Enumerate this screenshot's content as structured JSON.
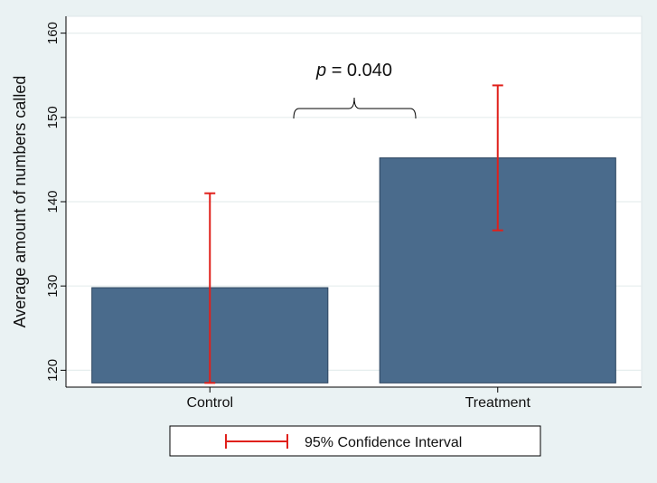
{
  "chart_data": {
    "type": "bar",
    "categories": [
      "Control",
      "Treatment"
    ],
    "series": [
      {
        "values": [
          129.8,
          145.2
        ],
        "ci_lower": [
          118.5,
          136.6
        ],
        "ci_upper": [
          141.0,
          153.8
        ],
        "color": "#4a6b8c"
      }
    ],
    "ylabel": "Average amount of numbers called",
    "xlabel": "",
    "title": "",
    "ylim": [
      118,
      162
    ],
    "yticks": [
      120,
      130,
      140,
      150,
      160
    ],
    "bar_base": 118.5,
    "grid": true,
    "legend": {
      "position": "bottom",
      "entries": [
        "95% Confidence Interval"
      ]
    },
    "annotation": {
      "p_symbol": "p",
      "p_rest": " = 0.040"
    },
    "colors": {
      "bar": "#4a6b8c",
      "error_bar": "#e0201b",
      "plot_bg": "#ffffff",
      "page_bg": "#eaf2f3",
      "grid": "#e6eeee"
    }
  }
}
